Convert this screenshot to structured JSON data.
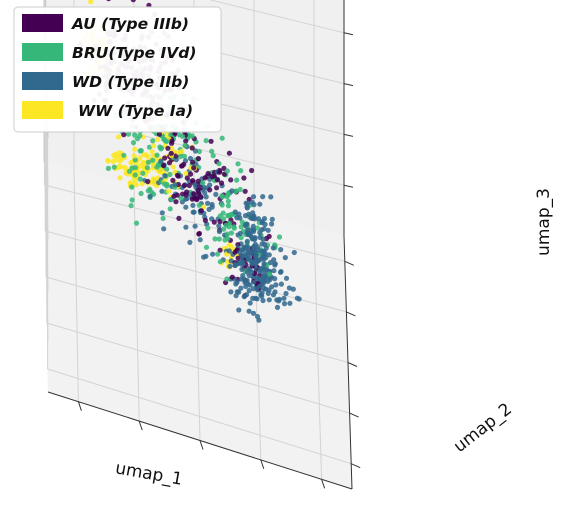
{
  "chart_data": {
    "type": "scatter",
    "projection": "3d",
    "title": "",
    "xlabel": "umap_1",
    "ylabel": "umap_2",
    "zlabel": "umap_3",
    "xlim": [
      0,
      10
    ],
    "ylim": [
      0,
      10
    ],
    "zlim": [
      0,
      10
    ],
    "grid": true,
    "legend_position": "top-left",
    "series": [
      {
        "name": "AU (Type IIIb)",
        "color": "#440154",
        "clusters": [
          {
            "center": [
              3.0,
              6.5,
              7.5
            ],
            "spread": [
              1.3,
              1.4,
              1.4
            ],
            "count": 180
          },
          {
            "center": [
              5.0,
              5.0,
              5.5
            ],
            "spread": [
              1.2,
              1.2,
              1.3
            ],
            "count": 90
          },
          {
            "center": [
              6.5,
              4.5,
              3.2
            ],
            "spread": [
              0.9,
              1.0,
              0.9
            ],
            "count": 35
          }
        ]
      },
      {
        "name": "BRU(Type IVd)",
        "color": "#35b779",
        "clusters": [
          {
            "center": [
              3.8,
              6.0,
              5.5
            ],
            "spread": [
              1.5,
              1.5,
              1.6
            ],
            "count": 160
          },
          {
            "center": [
              6.0,
              3.8,
              5.8
            ],
            "spread": [
              0.7,
              0.7,
              1.6
            ],
            "count": 40
          },
          {
            "center": [
              6.8,
              4.8,
              4.0
            ],
            "spread": [
              0.8,
              0.9,
              0.8
            ],
            "count": 30
          }
        ]
      },
      {
        "name": "WD (Type IIb)",
        "color": "#31688e",
        "clusters": [
          {
            "center": [
              5.0,
              5.5,
              4.5
            ],
            "spread": [
              1.2,
              1.2,
              1.4
            ],
            "count": 80
          },
          {
            "center": [
              7.0,
              4.2,
              3.2
            ],
            "spread": [
              0.9,
              0.9,
              0.9
            ],
            "count": 160
          },
          {
            "center": [
              6.8,
              2.8,
              6.0
            ],
            "spread": [
              0.7,
              0.5,
              1.2
            ],
            "count": 90
          }
        ]
      },
      {
        "name": "WW (Type Ia)",
        "color": "#fde725",
        "clusters": [
          {
            "center": [
              1.8,
              8.5,
              6.2
            ],
            "spread": [
              0.5,
              0.5,
              0.9
            ],
            "count": 60
          },
          {
            "center": [
              3.0,
              7.2,
              3.2
            ],
            "spread": [
              0.9,
              0.6,
              0.5
            ],
            "count": 80
          },
          {
            "center": [
              4.0,
              6.0,
              5.2
            ],
            "spread": [
              1.0,
              1.0,
              1.3
            ],
            "count": 60
          },
          {
            "center": [
              6.2,
              5.2,
              2.8
            ],
            "spread": [
              0.4,
              0.4,
              0.4
            ],
            "count": 15
          }
        ]
      }
    ]
  }
}
